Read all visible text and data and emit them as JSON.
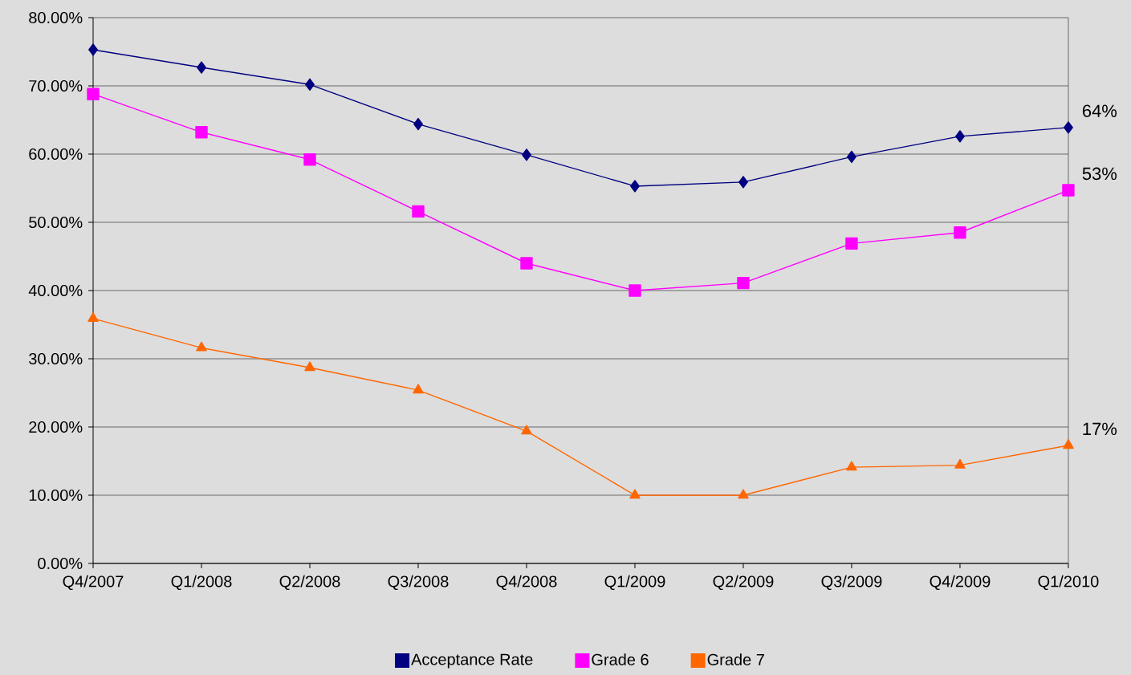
{
  "chart_data": {
    "type": "line",
    "categories": [
      "Q4/2007",
      "Q1/2008",
      "Q2/2008",
      "Q3/2008",
      "Q4/2008",
      "Q1/2009",
      "Q2/2009",
      "Q3/2009",
      "Q4/2009",
      "Q1/2010"
    ],
    "series": [
      {
        "name": "Acceptance Rate",
        "color": "#000080",
        "marker": "diamond",
        "values": [
          75.3,
          72.7,
          70.2,
          64.4,
          59.9,
          55.3,
          55.9,
          59.6,
          62.6,
          63.9
        ]
      },
      {
        "name": "Grade 6",
        "color": "#ff00ff",
        "marker": "square",
        "values": [
          68.8,
          63.2,
          59.2,
          51.6,
          44.0,
          40.0,
          41.1,
          46.9,
          48.5,
          54.7
        ]
      },
      {
        "name": "Grade 7",
        "color": "#ff6600",
        "marker": "triangle",
        "values": [
          35.9,
          31.6,
          28.7,
          25.4,
          19.4,
          10.0,
          10.0,
          14.1,
          14.4,
          17.3
        ]
      }
    ],
    "ylim": [
      0,
      80
    ],
    "yticks": [
      {
        "value": 0,
        "label": "0.00%"
      },
      {
        "value": 10,
        "label": "10.00%"
      },
      {
        "value": 20,
        "label": "20.00%"
      },
      {
        "value": 30,
        "label": "30.00%"
      },
      {
        "value": 40,
        "label": "40.00%"
      },
      {
        "value": 50,
        "label": "50.00%"
      },
      {
        "value": 60,
        "label": "60.00%"
      },
      {
        "value": 70,
        "label": "70.00%"
      },
      {
        "value": 80,
        "label": "80.00%"
      }
    ],
    "annotations": [
      {
        "text": "64%",
        "x": "Q1/2010",
        "y": 63.9
      },
      {
        "text": "53%",
        "x": "Q1/2010",
        "y": 54.7
      },
      {
        "text": "17%",
        "x": "Q1/2010",
        "y": 17.3
      }
    ],
    "grid": "y",
    "legend": "bottom",
    "line_style": "solid"
  }
}
